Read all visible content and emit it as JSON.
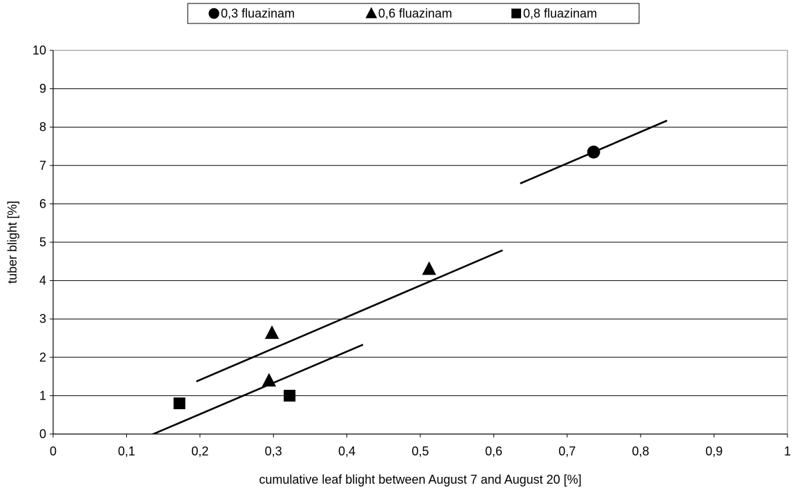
{
  "chart_data": {
    "type": "scatter",
    "title": "",
    "xlabel": "cumulative leaf blight between August 7 and August 20 [%]",
    "ylabel": "tuber blight [%]",
    "xlim": [
      0,
      1
    ],
    "ylim": [
      0,
      10
    ],
    "x_ticks": [
      "0",
      "0,1",
      "0,2",
      "0,3",
      "0,4",
      "0,5",
      "0,6",
      "0,7",
      "0,8",
      "0,9",
      "1"
    ],
    "y_ticks": [
      "0",
      "1",
      "2",
      "3",
      "4",
      "5",
      "6",
      "7",
      "8",
      "9",
      "10"
    ],
    "grid": "horizontal",
    "legend_position": "top-center",
    "series": [
      {
        "name": "0,3 fluazinam",
        "marker": "circle",
        "color": "#000000",
        "points": [
          [
            0.736,
            7.35
          ]
        ],
        "trend_line": [
          [
            0.636,
            6.53
          ],
          [
            0.836,
            8.17
          ]
        ]
      },
      {
        "name": "0,6 fluazinam",
        "marker": "triangle",
        "color": "#000000",
        "points": [
          [
            0.298,
            2.63
          ],
          [
            0.294,
            1.39
          ],
          [
            0.512,
            4.3
          ]
        ],
        "trend_line": [
          [
            0.195,
            1.37
          ],
          [
            0.612,
            4.79
          ]
        ]
      },
      {
        "name": "0,8 fluazinam",
        "marker": "square",
        "color": "#000000",
        "points": [
          [
            0.172,
            0.8
          ],
          [
            0.322,
            1.0
          ]
        ],
        "trend_line": [
          [
            0.118,
            -0.15
          ],
          [
            0.422,
            2.33
          ]
        ]
      }
    ]
  }
}
